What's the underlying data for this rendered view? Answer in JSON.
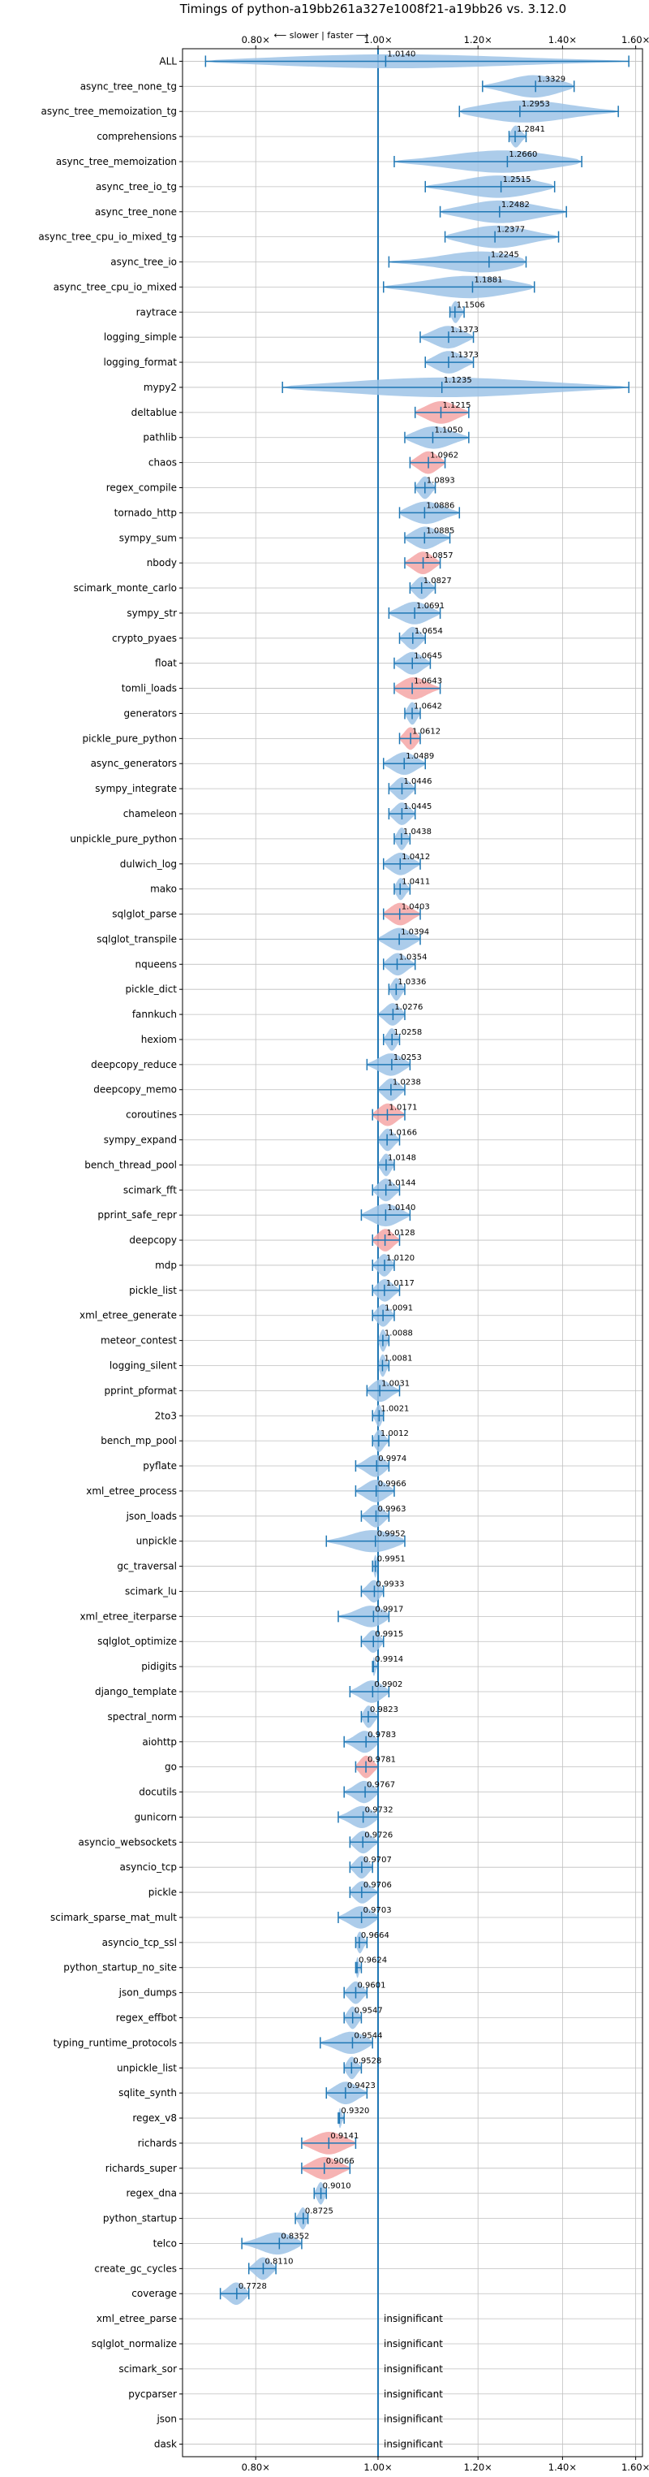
{
  "chart_data": {
    "type": "violin",
    "title": "Timings of python-a19bb261a327e1008f21-a19bb26 vs. 3.12.0",
    "xlabel": "",
    "ylabel": "",
    "x_scale": "log",
    "xlim": [
      0.7,
      1.62
    ],
    "xticks": [
      0.8,
      1.0,
      1.2,
      1.4,
      1.6
    ],
    "xtick_labels": [
      "0.80×",
      "1.00×",
      "1.20×",
      "1.40×",
      "1.60×"
    ],
    "reference_line": 1.0,
    "direction_annotation": "⟵ slower | faster ⟶",
    "grid": true,
    "colors": {
      "significant": "#9ec3e6",
      "regressed": "#f4a6a6",
      "line": "#1f77b4",
      "grid": "#bfbfbf"
    },
    "rows": [
      {
        "name": "ALL",
        "value": 1.014,
        "min": 0.73,
        "max": 1.58,
        "label": "1.0140",
        "kind": "all"
      },
      {
        "name": "async_tree_none_tg",
        "value": 1.3329,
        "min": 1.21,
        "max": 1.43,
        "label": "1.3329",
        "kind": "faster"
      },
      {
        "name": "async_tree_memoization_tg",
        "value": 1.2953,
        "min": 1.16,
        "max": 1.55,
        "label": "1.2953",
        "kind": "faster"
      },
      {
        "name": "comprehensions",
        "value": 1.2841,
        "min": 1.27,
        "max": 1.31,
        "label": "1.2841",
        "kind": "faster"
      },
      {
        "name": "async_tree_memoization",
        "value": 1.266,
        "min": 1.03,
        "max": 1.45,
        "label": "1.2660",
        "kind": "faster"
      },
      {
        "name": "async_tree_io_tg",
        "value": 1.2515,
        "min": 1.09,
        "max": 1.38,
        "label": "1.2515",
        "kind": "faster"
      },
      {
        "name": "async_tree_none",
        "value": 1.2482,
        "min": 1.12,
        "max": 1.41,
        "label": "1.2482",
        "kind": "faster"
      },
      {
        "name": "async_tree_cpu_io_mixed_tg",
        "value": 1.2377,
        "min": 1.13,
        "max": 1.39,
        "label": "1.2377",
        "kind": "faster"
      },
      {
        "name": "async_tree_io",
        "value": 1.2245,
        "min": 1.02,
        "max": 1.31,
        "label": "1.2245",
        "kind": "faster"
      },
      {
        "name": "async_tree_cpu_io_mixed",
        "value": 1.1881,
        "min": 1.01,
        "max": 1.33,
        "label": "1.1881",
        "kind": "faster"
      },
      {
        "name": "raytrace",
        "value": 1.1506,
        "min": 1.14,
        "max": 1.17,
        "label": "1.1506",
        "kind": "faster"
      },
      {
        "name": "logging_simple",
        "value": 1.1373,
        "min": 1.08,
        "max": 1.19,
        "label": "1.1373",
        "kind": "faster"
      },
      {
        "name": "logging_format",
        "value": 1.1373,
        "min": 1.09,
        "max": 1.19,
        "label": "1.1373",
        "kind": "faster"
      },
      {
        "name": "mypy2",
        "value": 1.1235,
        "min": 0.84,
        "max": 1.58,
        "label": "1.1235",
        "kind": "faster"
      },
      {
        "name": "deltablue",
        "value": 1.1215,
        "min": 1.07,
        "max": 1.18,
        "label": "1.1215",
        "kind": "regressed"
      },
      {
        "name": "pathlib",
        "value": 1.105,
        "min": 1.05,
        "max": 1.18,
        "label": "1.1050",
        "kind": "faster"
      },
      {
        "name": "chaos",
        "value": 1.0962,
        "min": 1.06,
        "max": 1.13,
        "label": "1.0962",
        "kind": "regressed"
      },
      {
        "name": "regex_compile",
        "value": 1.0893,
        "min": 1.07,
        "max": 1.11,
        "label": "1.0893",
        "kind": "faster"
      },
      {
        "name": "tornado_http",
        "value": 1.0886,
        "min": 1.04,
        "max": 1.16,
        "label": "1.0886",
        "kind": "faster"
      },
      {
        "name": "sympy_sum",
        "value": 1.0885,
        "min": 1.05,
        "max": 1.14,
        "label": "1.0885",
        "kind": "faster"
      },
      {
        "name": "nbody",
        "value": 1.0857,
        "min": 1.05,
        "max": 1.12,
        "label": "1.0857",
        "kind": "regressed"
      },
      {
        "name": "scimark_monte_carlo",
        "value": 1.0827,
        "min": 1.06,
        "max": 1.11,
        "label": "1.0827",
        "kind": "faster"
      },
      {
        "name": "sympy_str",
        "value": 1.0691,
        "min": 1.02,
        "max": 1.12,
        "label": "1.0691",
        "kind": "faster"
      },
      {
        "name": "crypto_pyaes",
        "value": 1.0654,
        "min": 1.04,
        "max": 1.09,
        "label": "1.0654",
        "kind": "faster"
      },
      {
        "name": "float",
        "value": 1.0645,
        "min": 1.03,
        "max": 1.1,
        "label": "1.0645",
        "kind": "faster"
      },
      {
        "name": "tomli_loads",
        "value": 1.0643,
        "min": 1.03,
        "max": 1.12,
        "label": "1.0643",
        "kind": "regressed"
      },
      {
        "name": "generators",
        "value": 1.0642,
        "min": 1.05,
        "max": 1.08,
        "label": "1.0642",
        "kind": "faster"
      },
      {
        "name": "pickle_pure_python",
        "value": 1.0612,
        "min": 1.04,
        "max": 1.08,
        "label": "1.0612",
        "kind": "regressed"
      },
      {
        "name": "async_generators",
        "value": 1.0489,
        "min": 1.01,
        "max": 1.09,
        "label": "1.0489",
        "kind": "faster"
      },
      {
        "name": "sympy_integrate",
        "value": 1.0446,
        "min": 1.02,
        "max": 1.07,
        "label": "1.0446",
        "kind": "faster"
      },
      {
        "name": "chameleon",
        "value": 1.0445,
        "min": 1.02,
        "max": 1.07,
        "label": "1.0445",
        "kind": "faster"
      },
      {
        "name": "unpickle_pure_python",
        "value": 1.0438,
        "min": 1.03,
        "max": 1.06,
        "label": "1.0438",
        "kind": "faster"
      },
      {
        "name": "dulwich_log",
        "value": 1.0412,
        "min": 1.01,
        "max": 1.08,
        "label": "1.0412",
        "kind": "faster"
      },
      {
        "name": "mako",
        "value": 1.0411,
        "min": 1.03,
        "max": 1.06,
        "label": "1.0411",
        "kind": "faster"
      },
      {
        "name": "sqlglot_parse",
        "value": 1.0403,
        "min": 1.01,
        "max": 1.08,
        "label": "1.0403",
        "kind": "regressed"
      },
      {
        "name": "sqlglot_transpile",
        "value": 1.0394,
        "min": 1.0,
        "max": 1.08,
        "label": "1.0394",
        "kind": "faster"
      },
      {
        "name": "nqueens",
        "value": 1.0354,
        "min": 1.01,
        "max": 1.07,
        "label": "1.0354",
        "kind": "faster"
      },
      {
        "name": "pickle_dict",
        "value": 1.0336,
        "min": 1.02,
        "max": 1.05,
        "label": "1.0336",
        "kind": "faster"
      },
      {
        "name": "fannkuch",
        "value": 1.0276,
        "min": 1.0,
        "max": 1.05,
        "label": "1.0276",
        "kind": "faster"
      },
      {
        "name": "hexiom",
        "value": 1.0258,
        "min": 1.01,
        "max": 1.04,
        "label": "1.0258",
        "kind": "faster"
      },
      {
        "name": "deepcopy_reduce",
        "value": 1.0253,
        "min": 0.98,
        "max": 1.06,
        "label": "1.0253",
        "kind": "faster"
      },
      {
        "name": "deepcopy_memo",
        "value": 1.0238,
        "min": 1.0,
        "max": 1.05,
        "label": "1.0238",
        "kind": "faster"
      },
      {
        "name": "coroutines",
        "value": 1.0171,
        "min": 0.99,
        "max": 1.05,
        "label": "1.0171",
        "kind": "regressed"
      },
      {
        "name": "sympy_expand",
        "value": 1.0166,
        "min": 1.0,
        "max": 1.04,
        "label": "1.0166",
        "kind": "faster"
      },
      {
        "name": "bench_thread_pool",
        "value": 1.0148,
        "min": 1.0,
        "max": 1.03,
        "label": "1.0148",
        "kind": "faster"
      },
      {
        "name": "scimark_fft",
        "value": 1.0144,
        "min": 0.99,
        "max": 1.04,
        "label": "1.0144",
        "kind": "faster"
      },
      {
        "name": "pprint_safe_repr",
        "value": 1.014,
        "min": 0.97,
        "max": 1.06,
        "label": "1.0140",
        "kind": "faster"
      },
      {
        "name": "deepcopy",
        "value": 1.0128,
        "min": 0.99,
        "max": 1.04,
        "label": "1.0128",
        "kind": "regressed"
      },
      {
        "name": "mdp",
        "value": 1.012,
        "min": 0.99,
        "max": 1.03,
        "label": "1.0120",
        "kind": "faster"
      },
      {
        "name": "pickle_list",
        "value": 1.0117,
        "min": 0.99,
        "max": 1.04,
        "label": "1.0117",
        "kind": "faster"
      },
      {
        "name": "xml_etree_generate",
        "value": 1.0091,
        "min": 0.99,
        "max": 1.03,
        "label": "1.0091",
        "kind": "faster"
      },
      {
        "name": "meteor_contest",
        "value": 1.0088,
        "min": 1.0,
        "max": 1.02,
        "label": "1.0088",
        "kind": "faster"
      },
      {
        "name": "logging_silent",
        "value": 1.0081,
        "min": 1.0,
        "max": 1.02,
        "label": "1.0081",
        "kind": "faster"
      },
      {
        "name": "pprint_pformat",
        "value": 1.0031,
        "min": 0.98,
        "max": 1.04,
        "label": "1.0031",
        "kind": "faster"
      },
      {
        "name": "2to3",
        "value": 1.0021,
        "min": 0.99,
        "max": 1.01,
        "label": "1.0021",
        "kind": "faster"
      },
      {
        "name": "bench_mp_pool",
        "value": 1.0012,
        "min": 0.99,
        "max": 1.02,
        "label": "1.0012",
        "kind": "faster"
      },
      {
        "name": "pyflate",
        "value": 0.9974,
        "min": 0.96,
        "max": 1.02,
        "label": "0.9974",
        "kind": "faster"
      },
      {
        "name": "xml_etree_process",
        "value": 0.9966,
        "min": 0.96,
        "max": 1.03,
        "label": "0.9966",
        "kind": "faster"
      },
      {
        "name": "json_loads",
        "value": 0.9963,
        "min": 0.97,
        "max": 1.02,
        "label": "0.9963",
        "kind": "faster"
      },
      {
        "name": "unpickle",
        "value": 0.9952,
        "min": 0.91,
        "max": 1.05,
        "label": "0.9952",
        "kind": "faster"
      },
      {
        "name": "gc_traversal",
        "value": 0.9951,
        "min": 0.99,
        "max": 1.0,
        "label": "0.9951",
        "kind": "faster"
      },
      {
        "name": "scimark_lu",
        "value": 0.9933,
        "min": 0.97,
        "max": 1.01,
        "label": "0.9933",
        "kind": "faster"
      },
      {
        "name": "xml_etree_iterparse",
        "value": 0.9917,
        "min": 0.93,
        "max": 1.02,
        "label": "0.9917",
        "kind": "faster"
      },
      {
        "name": "sqlglot_optimize",
        "value": 0.9915,
        "min": 0.97,
        "max": 1.01,
        "label": "0.9915",
        "kind": "faster"
      },
      {
        "name": "pidigits",
        "value": 0.9914,
        "min": 0.99,
        "max": 1.0,
        "label": "0.9914",
        "kind": "faster"
      },
      {
        "name": "django_template",
        "value": 0.9902,
        "min": 0.95,
        "max": 1.02,
        "label": "0.9902",
        "kind": "faster"
      },
      {
        "name": "spectral_norm",
        "value": 0.9823,
        "min": 0.97,
        "max": 1.0,
        "label": "0.9823",
        "kind": "faster"
      },
      {
        "name": "aiohttp",
        "value": 0.9783,
        "min": 0.94,
        "max": 1.0,
        "label": "0.9783",
        "kind": "faster"
      },
      {
        "name": "go",
        "value": 0.9781,
        "min": 0.96,
        "max": 1.0,
        "label": "0.9781",
        "kind": "regressed"
      },
      {
        "name": "docutils",
        "value": 0.9767,
        "min": 0.94,
        "max": 1.0,
        "label": "0.9767",
        "kind": "faster"
      },
      {
        "name": "gunicorn",
        "value": 0.9732,
        "min": 0.93,
        "max": 1.0,
        "label": "0.9732",
        "kind": "faster"
      },
      {
        "name": "asyncio_websockets",
        "value": 0.9726,
        "min": 0.95,
        "max": 1.0,
        "label": "0.9726",
        "kind": "faster"
      },
      {
        "name": "asyncio_tcp",
        "value": 0.9707,
        "min": 0.95,
        "max": 0.99,
        "label": "0.9707",
        "kind": "faster"
      },
      {
        "name": "pickle",
        "value": 0.9706,
        "min": 0.95,
        "max": 1.0,
        "label": "0.9706",
        "kind": "faster"
      },
      {
        "name": "scimark_sparse_mat_mult",
        "value": 0.9703,
        "min": 0.93,
        "max": 1.0,
        "label": "0.9703",
        "kind": "faster"
      },
      {
        "name": "asyncio_tcp_ssl",
        "value": 0.9664,
        "min": 0.96,
        "max": 0.98,
        "label": "0.9664",
        "kind": "faster"
      },
      {
        "name": "python_startup_no_site",
        "value": 0.9624,
        "min": 0.96,
        "max": 0.97,
        "label": "0.9624",
        "kind": "faster"
      },
      {
        "name": "json_dumps",
        "value": 0.9601,
        "min": 0.94,
        "max": 0.98,
        "label": "0.9601",
        "kind": "faster"
      },
      {
        "name": "regex_effbot",
        "value": 0.9547,
        "min": 0.94,
        "max": 0.97,
        "label": "0.9547",
        "kind": "faster"
      },
      {
        "name": "typing_runtime_protocols",
        "value": 0.9544,
        "min": 0.9,
        "max": 0.99,
        "label": "0.9544",
        "kind": "faster"
      },
      {
        "name": "unpickle_list",
        "value": 0.9528,
        "min": 0.94,
        "max": 0.97,
        "label": "0.9528",
        "kind": "faster"
      },
      {
        "name": "sqlite_synth",
        "value": 0.9423,
        "min": 0.91,
        "max": 0.98,
        "label": "0.9423",
        "kind": "faster"
      },
      {
        "name": "regex_v8",
        "value": 0.932,
        "min": 0.93,
        "max": 0.94,
        "label": "0.9320",
        "kind": "faster"
      },
      {
        "name": "richards",
        "value": 0.9141,
        "min": 0.87,
        "max": 0.96,
        "label": "0.9141",
        "kind": "regressed"
      },
      {
        "name": "richards_super",
        "value": 0.9066,
        "min": 0.87,
        "max": 0.95,
        "label": "0.9066",
        "kind": "regressed"
      },
      {
        "name": "regex_dna",
        "value": 0.901,
        "min": 0.89,
        "max": 0.91,
        "label": "0.9010",
        "kind": "faster"
      },
      {
        "name": "python_startup",
        "value": 0.8725,
        "min": 0.86,
        "max": 0.88,
        "label": "0.8725",
        "kind": "faster"
      },
      {
        "name": "telco",
        "value": 0.8352,
        "min": 0.78,
        "max": 0.87,
        "label": "0.8352",
        "kind": "faster"
      },
      {
        "name": "create_gc_cycles",
        "value": 0.811,
        "min": 0.79,
        "max": 0.83,
        "label": "0.8110",
        "kind": "faster"
      },
      {
        "name": "coverage",
        "value": 0.7728,
        "min": 0.75,
        "max": 0.79,
        "label": "0.7728",
        "kind": "faster"
      },
      {
        "name": "xml_etree_parse",
        "value": null,
        "label": "insignificant",
        "kind": "insignificant"
      },
      {
        "name": "sqlglot_normalize",
        "value": null,
        "label": "insignificant",
        "kind": "insignificant"
      },
      {
        "name": "scimark_sor",
        "value": null,
        "label": "insignificant",
        "kind": "insignificant"
      },
      {
        "name": "pycparser",
        "value": null,
        "label": "insignificant",
        "kind": "insignificant"
      },
      {
        "name": "json",
        "value": null,
        "label": "insignificant",
        "kind": "insignificant"
      },
      {
        "name": "dask",
        "value": null,
        "label": "insignificant",
        "kind": "insignificant"
      }
    ]
  }
}
